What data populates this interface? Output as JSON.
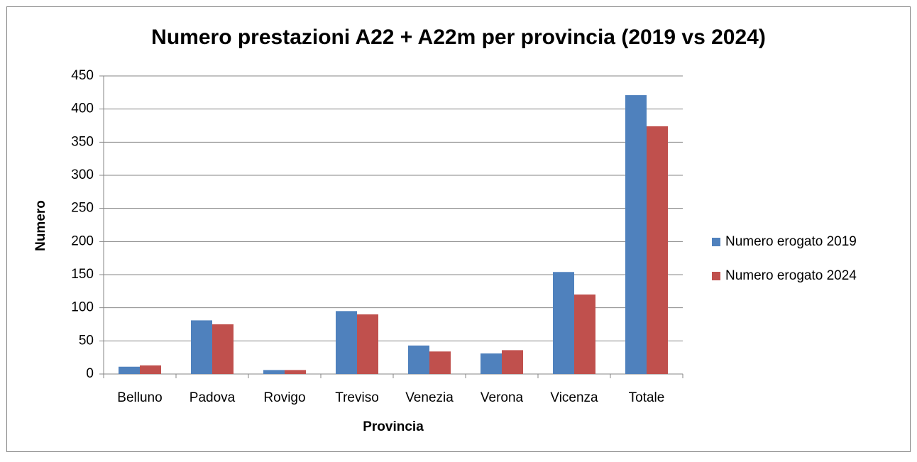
{
  "chart_data": {
    "type": "bar",
    "title": "Numero prestazioni A22 + A22m per provincia (2019 vs 2024)",
    "x_label": "Provincia",
    "y_label": "Numero",
    "categories": [
      "Belluno",
      "Padova",
      "Rovigo",
      "Treviso",
      "Venezia",
      "Verona",
      "Vicenza",
      "Totale"
    ],
    "series": [
      {
        "name": "Numero erogato 2019",
        "color": "#4f81bd",
        "values": [
          11,
          81,
          6,
          95,
          43,
          31,
          154,
          421
        ]
      },
      {
        "name": "Numero erogato 2024",
        "color": "#c0504d",
        "values": [
          13,
          75,
          6,
          90,
          34,
          36,
          120,
          374
        ]
      }
    ],
    "ylim": [
      0,
      450
    ],
    "yticks": [
      0,
      50,
      100,
      150,
      200,
      250,
      300,
      350,
      400,
      450
    ],
    "grid": true,
    "legend": "right"
  }
}
